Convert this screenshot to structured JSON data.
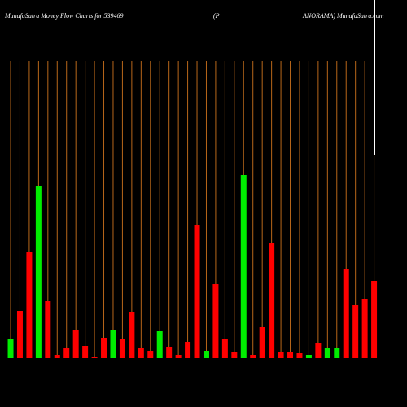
{
  "chart_data": {
    "type": "bar",
    "title_left": "MunafaSutra  Money Flow  Charts for 539469",
    "title_middle": "(P",
    "title_right": "ANORAMA) MunafaSutra.com",
    "categories": [
      null,
      null,
      null,
      null,
      null,
      null,
      null,
      null,
      null,
      null,
      null,
      null,
      null,
      null,
      null,
      null,
      null,
      null,
      null,
      null,
      null,
      null,
      null,
      null,
      null,
      null,
      null,
      null,
      null,
      null,
      null,
      null,
      null,
      null,
      null,
      null,
      null,
      null,
      null,
      null
    ],
    "values": [
      23,
      58,
      131,
      211,
      70,
      4,
      13,
      34,
      15,
      2,
      25,
      35,
      23,
      57,
      13,
      9,
      33,
      14,
      4,
      20,
      163,
      9,
      91,
      24,
      8,
      225,
      4,
      38,
      141,
      8,
      8,
      6,
      4,
      19,
      13,
      13,
      109,
      65,
      73,
      95
    ],
    "colors": [
      "#00ee00",
      "#ff0000",
      "#ff0000",
      "#00ee00",
      "#ff0000",
      "#ff0000",
      "#ff0000",
      "#ff0000",
      "#ff0000",
      "#ff0000",
      "#ff0000",
      "#00ee00",
      "#ff0000",
      "#ff0000",
      "#ff0000",
      "#ff0000",
      "#00ee00",
      "#ff0000",
      "#ff0000",
      "#ff0000",
      "#ff0000",
      "#00ee00",
      "#ff0000",
      "#ff0000",
      "#ff0000",
      "#00ee00",
      "#ff0000",
      "#ff0000",
      "#ff0000",
      "#ff0000",
      "#ff0000",
      "#ff0000",
      "#00ee00",
      "#ff0000",
      "#00ee00",
      "#00ee00",
      "#ff0000",
      "#ff0000",
      "#ff0000",
      "#ff0000"
    ],
    "ylim": [
      0,
      365
    ]
  }
}
